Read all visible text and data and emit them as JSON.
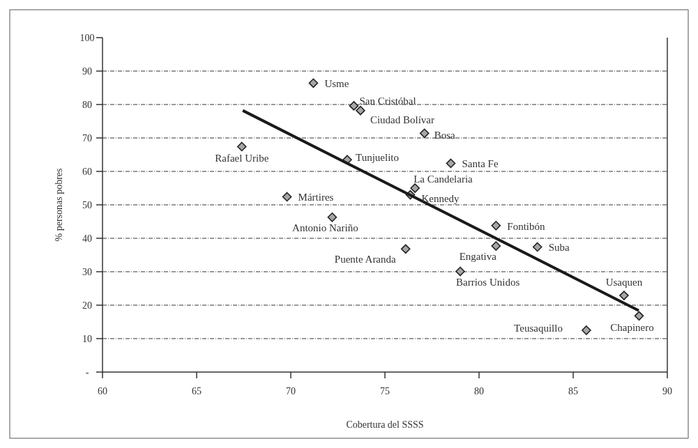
{
  "chart_data": {
    "type": "scatter",
    "xlabel": "Cobertura del SSSS",
    "ylabel": "% personas pobres",
    "xlim": [
      60,
      90
    ],
    "xticks": [
      60,
      65,
      70,
      75,
      80,
      85,
      90
    ],
    "ylim": [
      0,
      100
    ],
    "yticks": [
      {
        "value": 0,
        "label": "-"
      },
      10,
      20,
      30,
      40,
      50,
      60,
      70,
      80,
      90,
      100
    ],
    "grid": "y",
    "marker": "diamond",
    "series": [
      {
        "color": "#a6a6a6",
        "x": [
          71.2,
          73.35,
          73.7,
          77.1,
          67.4,
          73.0,
          78.5,
          76.6,
          76.35,
          69.8,
          72.2,
          80.9,
          76.1,
          80.9,
          83.1,
          79.0,
          87.7,
          88.5,
          85.7
        ],
        "values": [
          86.4,
          79.6,
          78.2,
          71.4,
          67.4,
          63.5,
          62.4,
          55.0,
          53.0,
          52.4,
          46.3,
          43.8,
          36.8,
          37.7,
          37.4,
          30.1,
          22.9,
          16.8,
          12.5
        ]
      },
      {
        "type": "line",
        "color": "#1a1a1a",
        "line_style": "solid",
        "marker": "none",
        "x": [
          67.45,
          88.48
        ],
        "values": [
          78.2,
          18.4
        ]
      }
    ],
    "annotations": [
      {
        "text": "Usme",
        "x": 71.2,
        "y": 86.4
      },
      {
        "text": "San Cristóbal",
        "x": 73.35,
        "y": 79.6
      },
      {
        "text": "Ciudad Bolívar",
        "x": 73.7,
        "y": 78.2
      },
      {
        "text": "Bosa",
        "x": 77.1,
        "y": 71.4
      },
      {
        "text": "Rafael Uribe",
        "x": 67.4,
        "y": 67.4
      },
      {
        "text": "Tunjuelito",
        "x": 73.0,
        "y": 63.5
      },
      {
        "text": "Santa Fe",
        "x": 78.5,
        "y": 62.4
      },
      {
        "text": "La Candelaria",
        "x": 76.6,
        "y": 55.0
      },
      {
        "text": "Kennedy",
        "x": 76.35,
        "y": 53.0
      },
      {
        "text": "Mártires",
        "x": 69.8,
        "y": 52.4
      },
      {
        "text": "Antonio Nariño",
        "x": 72.2,
        "y": 46.3
      },
      {
        "text": "Fontibón",
        "x": 80.9,
        "y": 43.8
      },
      {
        "text": "Puente Aranda",
        "x": 76.1,
        "y": 36.8
      },
      {
        "text": "Engativa",
        "x": 80.9,
        "y": 37.7
      },
      {
        "text": "Suba",
        "x": 83.1,
        "y": 37.4
      },
      {
        "text": "Barrios Unidos",
        "x": 79.0,
        "y": 30.1
      },
      {
        "text": "Usaquen",
        "x": 87.7,
        "y": 22.9
      },
      {
        "text": "Chapinero",
        "x": 88.5,
        "y": 16.8
      },
      {
        "text": "Teusaquillo",
        "x": 85.7,
        "y": 12.5
      }
    ]
  }
}
